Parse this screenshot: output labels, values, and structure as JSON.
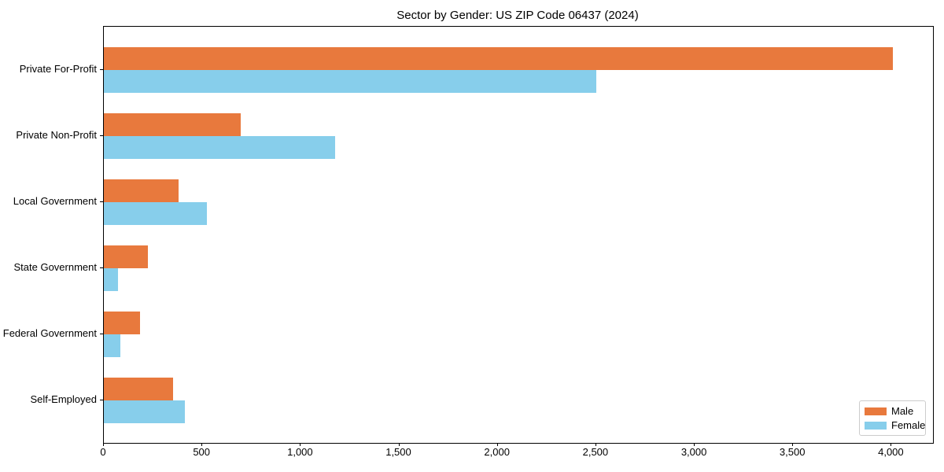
{
  "chart_data": {
    "type": "bar",
    "orientation": "horizontal",
    "title": "Sector by Gender: US ZIP Code 06437 (2024)",
    "categories": [
      "Private For-Profit",
      "Private Non-Profit",
      "Local Government",
      "State Government",
      "Federal Government",
      "Self-Employed"
    ],
    "series": [
      {
        "name": "Male",
        "color": "#E8793D",
        "values": [
          4005,
          695,
          380,
          225,
          185,
          350
        ]
      },
      {
        "name": "Female",
        "color": "#87CEEB",
        "values": [
          2500,
          1175,
          525,
          70,
          85,
          410
        ]
      }
    ],
    "xlabel": "",
    "ylabel": "",
    "xlim": [
      0,
      4210
    ],
    "x_ticks": [
      0,
      500,
      1000,
      1500,
      2000,
      2500,
      3000,
      3500,
      4000
    ],
    "x_tick_labels": [
      "0",
      "500",
      "1,000",
      "1,500",
      "2,000",
      "2,500",
      "3,000",
      "3,500",
      "4,000"
    ],
    "grid": false,
    "legend": {
      "position": "lower-right",
      "items": [
        "Male",
        "Female"
      ]
    },
    "colors": {
      "male": "#E8793D",
      "female": "#87CEEB",
      "spine": "#000000",
      "background": "#ffffff",
      "text": "#000000"
    }
  }
}
